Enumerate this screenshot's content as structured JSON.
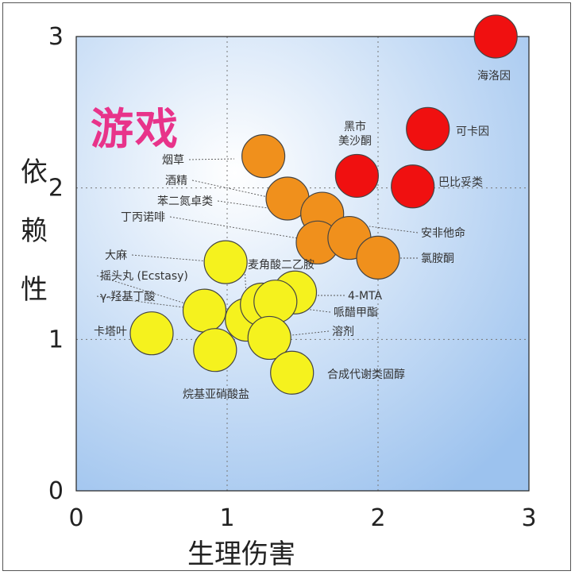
{
  "chart_data": {
    "type": "scatter",
    "title": "",
    "overlay_text": "游戏",
    "xlabel": "生理伤害",
    "ylabel": "依赖性",
    "xlim": [
      0,
      3
    ],
    "ylim": [
      0,
      3
    ],
    "x_ticks": [
      "0",
      "1",
      "2",
      "3"
    ],
    "y_ticks": [
      "0",
      "1",
      "2",
      "3"
    ],
    "grid": "dotted",
    "groups": [
      {
        "name": "red",
        "color": "#f01010"
      },
      {
        "name": "orange",
        "color": "#f0901c"
      },
      {
        "name": "yellow",
        "color": "#f5f21e"
      }
    ],
    "points": [
      {
        "label": "海洛因",
        "x": 2.78,
        "y": 3.0,
        "group": "red"
      },
      {
        "label": "可卡因",
        "x": 2.33,
        "y": 2.39,
        "group": "red"
      },
      {
        "label": "巴比妥类",
        "x": 2.23,
        "y": 2.01,
        "group": "red"
      },
      {
        "label": "黑市\n美沙酮",
        "x": 1.86,
        "y": 2.08,
        "group": "red"
      },
      {
        "label": "烟草",
        "x": 1.24,
        "y": 2.21,
        "group": "orange"
      },
      {
        "label": "酒精",
        "x": 1.4,
        "y": 1.93,
        "group": "orange"
      },
      {
        "label": "苯二氮卓类",
        "x": 1.63,
        "y": 1.83,
        "group": "orange"
      },
      {
        "label": "丁丙诺啡",
        "x": 1.6,
        "y": 1.64,
        "group": "orange"
      },
      {
        "label": "安非他命",
        "x": 1.81,
        "y": 1.67,
        "group": "orange"
      },
      {
        "label": "氯胺酮",
        "x": 2.0,
        "y": 1.54,
        "group": "orange"
      },
      {
        "label": "大麻",
        "x": 0.99,
        "y": 1.51,
        "group": "yellow"
      },
      {
        "label": "摇头丸 (Ecstasy)",
        "x": 1.13,
        "y": 1.13,
        "group": "yellow"
      },
      {
        "label": "麦角酸二乙胺",
        "x": 1.23,
        "y": 1.23,
        "group": "yellow"
      },
      {
        "label": "γ-羟基丁酸",
        "x": 0.85,
        "y": 1.19,
        "group": "yellow"
      },
      {
        "label": "4-MTA",
        "x": 1.45,
        "y": 1.31,
        "group": "yellow"
      },
      {
        "label": "哌醋甲酯",
        "x": 1.32,
        "y": 1.25,
        "group": "yellow"
      },
      {
        "label": "卡塔叶",
        "x": 0.5,
        "y": 1.04,
        "group": "yellow"
      },
      {
        "label": "溶剂",
        "x": 1.28,
        "y": 1.01,
        "group": "yellow"
      },
      {
        "label": "烷基亚硝酸盐",
        "x": 0.92,
        "y": 0.93,
        "group": "yellow"
      },
      {
        "label": "合成代谢类固醇",
        "x": 1.43,
        "y": 0.78,
        "group": "yellow"
      }
    ]
  }
}
